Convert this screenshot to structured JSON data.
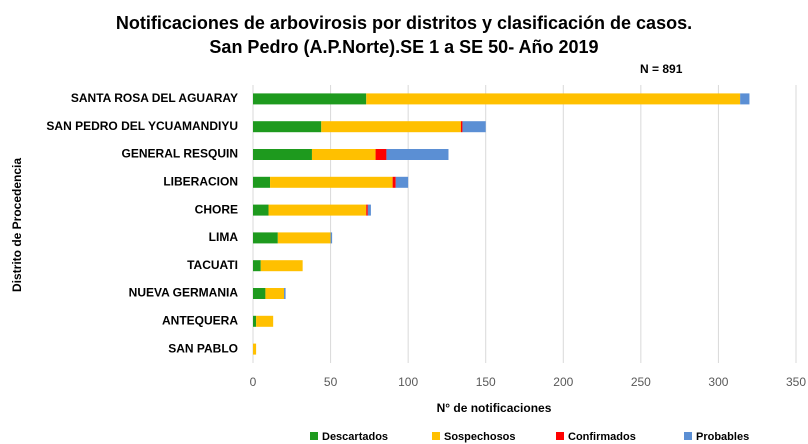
{
  "chart_data": {
    "type": "stacked_barh",
    "title": "Notificaciones de arbovirosis por distritos y clasificación de casos.",
    "subtitle": "San Pedro (A.P.Norte).SE 1 a SE 50- Año 2019",
    "annotation": "N = 891",
    "x_label": "N° de notificaciones",
    "y_label": "Distrito de Procedencia",
    "categories": [
      "SANTA ROSA DEL AGUARAY",
      "SAN PEDRO DEL YCUAMANDIYU",
      "GENERAL RESQUIN",
      "LIBERACION",
      "CHORE",
      "LIMA",
      "TACUATI",
      "NUEVA GERMANIA",
      "ANTEQUERA",
      "SAN PABLO"
    ],
    "series": [
      {
        "name": "Descartados",
        "color": "#1e9a1e",
        "values": [
          73,
          44,
          38,
          11,
          10,
          16,
          5,
          8,
          2,
          0
        ]
      },
      {
        "name": "Sospechosos",
        "color": "#ffc000",
        "values": [
          241,
          90,
          41,
          79,
          63,
          34,
          27,
          12,
          11,
          2
        ]
      },
      {
        "name": "Confirmados",
        "color": "#ff0000",
        "values": [
          0,
          1,
          7,
          2,
          1,
          0,
          0,
          0,
          0,
          0
        ]
      },
      {
        "name": "Probables",
        "color": "#5b8fd4",
        "values": [
          6,
          15,
          40,
          8,
          2,
          1,
          0,
          1,
          0,
          0
        ]
      }
    ],
    "xlim": [
      0,
      350
    ],
    "xticks": [
      0,
      50,
      100,
      150,
      200,
      250,
      300,
      350
    ],
    "grid": true
  }
}
